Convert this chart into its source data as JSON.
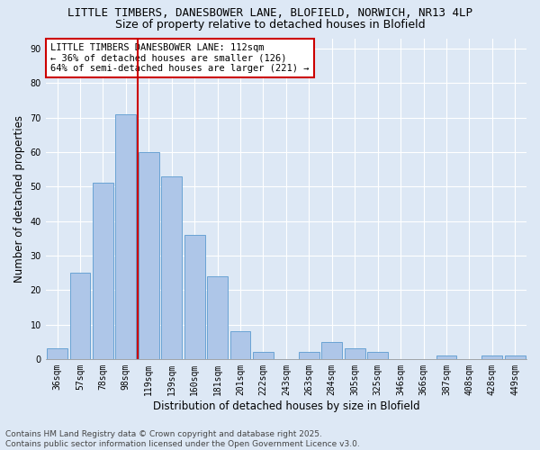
{
  "title1": "LITTLE TIMBERS, DANESBOWER LANE, BLOFIELD, NORWICH, NR13 4LP",
  "title2": "Size of property relative to detached houses in Blofield",
  "xlabel": "Distribution of detached houses by size in Blofield",
  "ylabel": "Number of detached properties",
  "categories": [
    "36sqm",
    "57sqm",
    "78sqm",
    "98sqm",
    "119sqm",
    "139sqm",
    "160sqm",
    "181sqm",
    "201sqm",
    "222sqm",
    "243sqm",
    "263sqm",
    "284sqm",
    "305sqm",
    "325sqm",
    "346sqm",
    "366sqm",
    "387sqm",
    "408sqm",
    "428sqm",
    "449sqm"
  ],
  "values": [
    3,
    25,
    51,
    71,
    60,
    53,
    36,
    24,
    8,
    2,
    0,
    2,
    5,
    3,
    2,
    0,
    0,
    1,
    0,
    1,
    1
  ],
  "bar_color": "#aec6e8",
  "bar_edge_color": "#6aa3d4",
  "background_color": "#dde8f5",
  "grid_color": "#ffffff",
  "vline_color": "#cc0000",
  "annotation_text": "LITTLE TIMBERS DANESBOWER LANE: 112sqm\n← 36% of detached houses are smaller (126)\n64% of semi-detached houses are larger (221) →",
  "annotation_box_color": "#ffffff",
  "annotation_box_edge": "#cc0000",
  "footnote": "Contains HM Land Registry data © Crown copyright and database right 2025.\nContains public sector information licensed under the Open Government Licence v3.0.",
  "ylim": [
    0,
    93
  ],
  "yticks": [
    0,
    10,
    20,
    30,
    40,
    50,
    60,
    70,
    80,
    90
  ],
  "title1_fontsize": 9,
  "title2_fontsize": 9,
  "axis_label_fontsize": 8.5,
  "tick_fontsize": 7,
  "annotation_fontsize": 7.5,
  "footnote_fontsize": 6.5
}
